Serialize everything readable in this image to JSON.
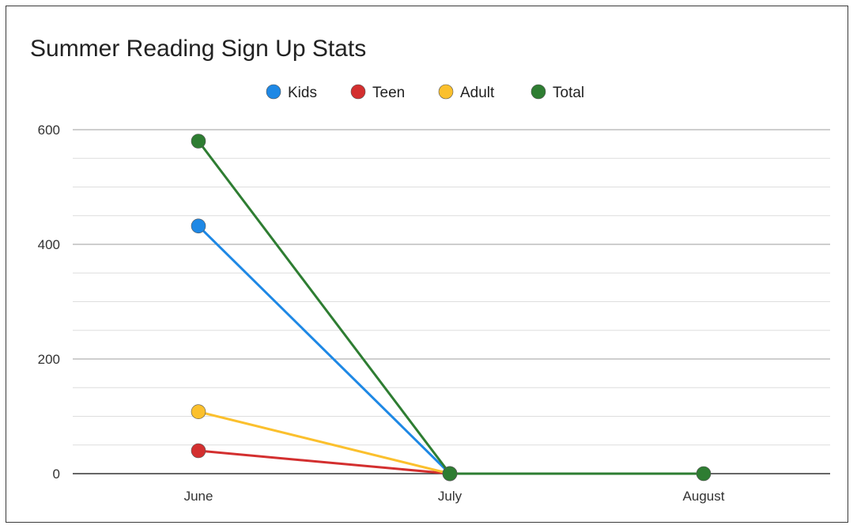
{
  "chart_data": {
    "type": "line",
    "title": "Summer Reading Sign Up Stats",
    "categories": [
      "June",
      "July",
      "August"
    ],
    "yticks": [
      0,
      200,
      400,
      600
    ],
    "ylim": [
      0,
      600
    ],
    "grid": true,
    "legend_position": "top",
    "series": [
      {
        "name": "Kids",
        "color": "#1e88e5",
        "values": [
          432,
          0,
          null
        ]
      },
      {
        "name": "Teen",
        "color": "#d32f2f",
        "values": [
          40,
          0,
          null
        ]
      },
      {
        "name": "Adult",
        "color": "#fbc02d",
        "values": [
          108,
          0,
          null
        ]
      },
      {
        "name": "Total",
        "color": "#2e7d32",
        "values": [
          580,
          0,
          0
        ]
      }
    ]
  }
}
